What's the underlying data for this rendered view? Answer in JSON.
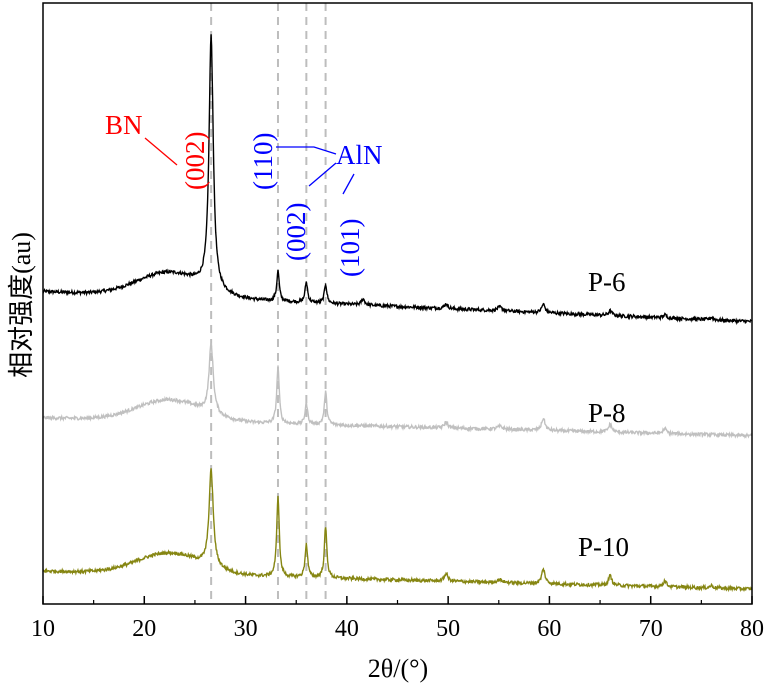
{
  "chart_data": {
    "type": "line",
    "xlabel": "2θ/(°)",
    "ylabel": "相对强度(au)",
    "xlim": [
      10,
      80
    ],
    "ylim": [
      0,
      100
    ],
    "xticks": [
      "10",
      "20",
      "30",
      "40",
      "50",
      "60",
      "70",
      "80"
    ],
    "grid": false,
    "reference_lines": [
      26.6,
      33.2,
      36.0,
      37.9
    ],
    "series": [
      {
        "name": "P-6",
        "color": "#000000",
        "baseline": 52,
        "drop": 5,
        "hump": 4,
        "peaks": [
          [
            26.6,
            42,
            0.25
          ],
          [
            33.2,
            5,
            0.15
          ],
          [
            36.0,
            3.4,
            0.15
          ],
          [
            37.9,
            3.2,
            0.15
          ],
          [
            41.6,
            1,
            0.2
          ],
          [
            49.8,
            0.8,
            0.2
          ],
          [
            55.1,
            0.6,
            0.3
          ],
          [
            59.4,
            1.4,
            0.2
          ],
          [
            66.0,
            0.8,
            0.2
          ],
          [
            71.4,
            0.5,
            0.2
          ],
          [
            76.0,
            0.4,
            0.2
          ]
        ]
      },
      {
        "name": "P-8",
        "color": "#c0c0c0",
        "baseline": 31,
        "drop": 3,
        "hump": 3.5,
        "peaks": [
          [
            26.6,
            11.5,
            0.25
          ],
          [
            33.2,
            9.5,
            0.15
          ],
          [
            36.0,
            3.5,
            0.15
          ],
          [
            37.9,
            5.5,
            0.15
          ],
          [
            49.8,
            1,
            0.2
          ],
          [
            55.1,
            0.5,
            0.3
          ],
          [
            59.4,
            2,
            0.2
          ],
          [
            66.0,
            1.3,
            0.2
          ],
          [
            71.4,
            0.8,
            0.2
          ]
        ]
      },
      {
        "name": "P-10",
        "color": "#868612",
        "baseline": 5.5,
        "drop": 3,
        "hump": 3.5,
        "peaks": [
          [
            26.6,
            16,
            0.25
          ],
          [
            33.2,
            13.5,
            0.15
          ],
          [
            36.0,
            5.5,
            0.15
          ],
          [
            37.9,
            8.5,
            0.15
          ],
          [
            49.8,
            1.3,
            0.2
          ],
          [
            55.1,
            0.5,
            0.3
          ],
          [
            59.4,
            2.4,
            0.2
          ],
          [
            66.0,
            1.6,
            0.2
          ],
          [
            71.4,
            1,
            0.2
          ],
          [
            76.0,
            0.4,
            0.2
          ]
        ]
      }
    ],
    "sample_labels": [
      "P-6",
      "P-8",
      "P-10"
    ],
    "annotations": {
      "bn": {
        "material": "BN",
        "peak": "(002)",
        "color": "#ff0000"
      },
      "aln": {
        "material": "AlN",
        "peaks": [
          "(110)",
          "(002)",
          "(101)"
        ],
        "color": "#0000ff"
      }
    }
  }
}
